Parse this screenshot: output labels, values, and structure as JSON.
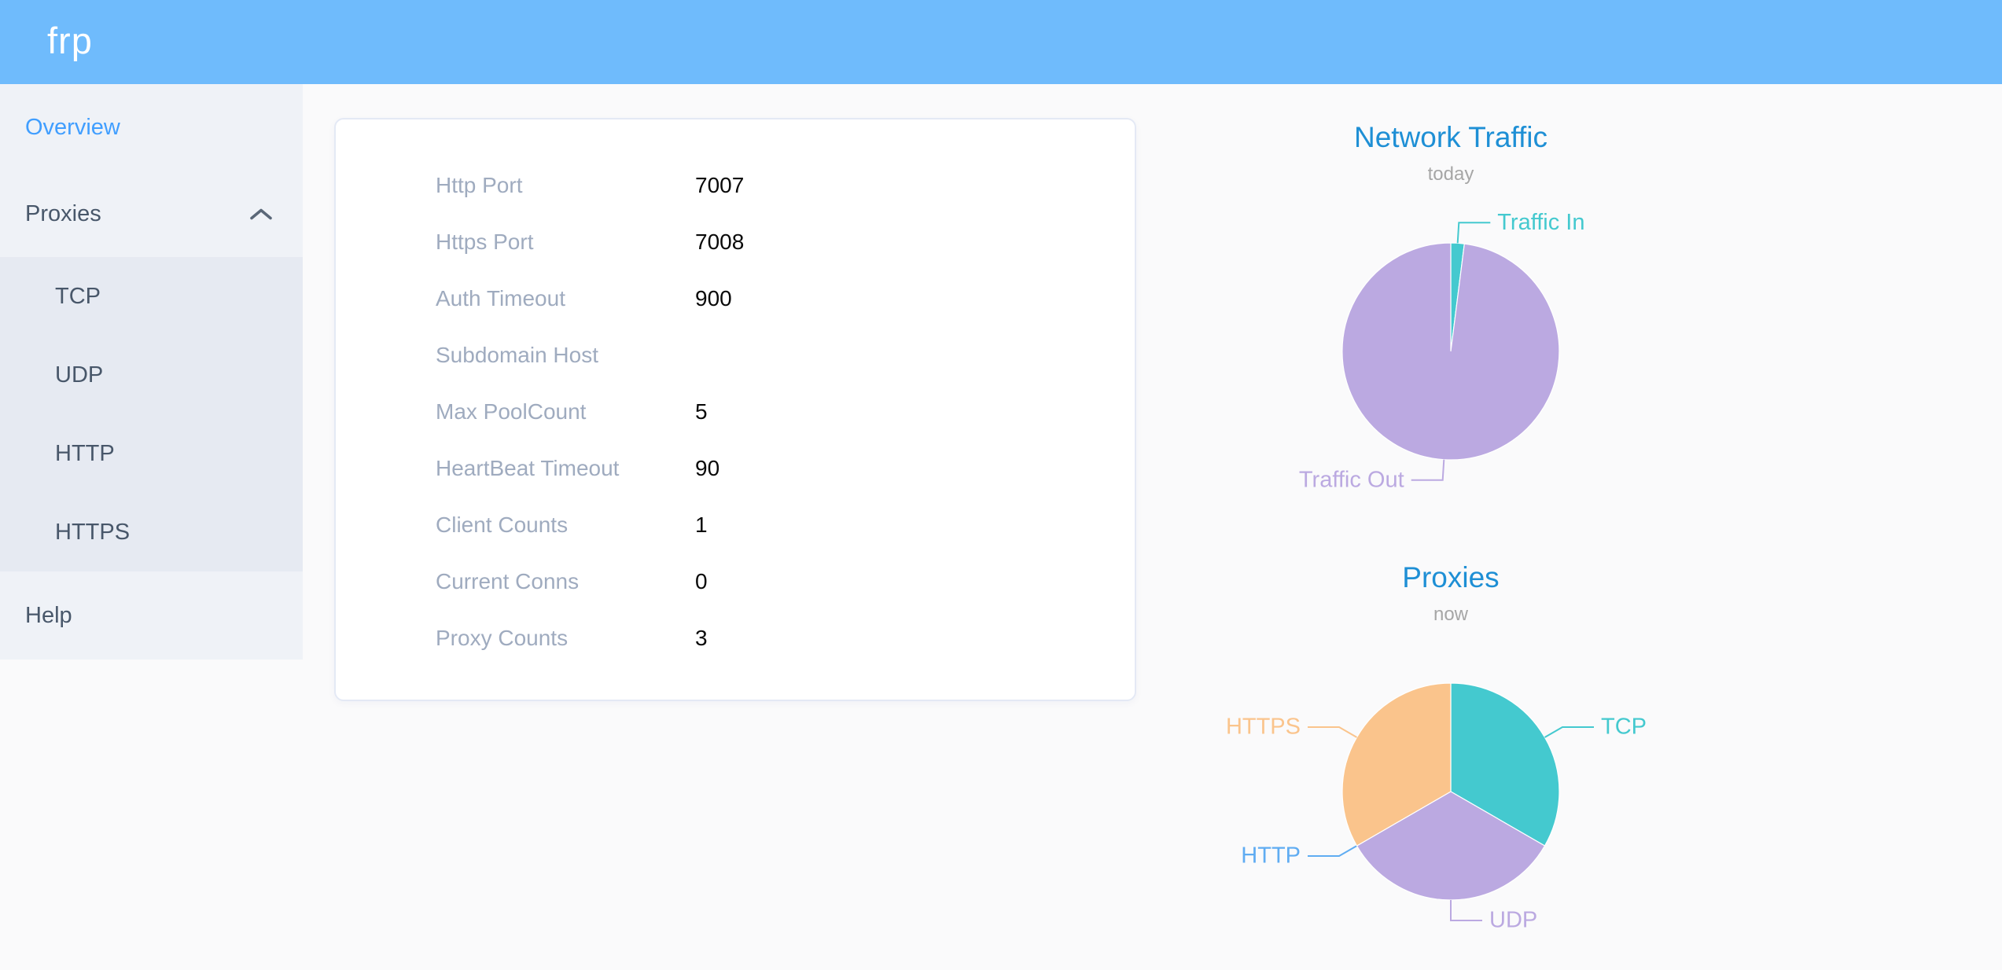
{
  "header": {
    "logo": "frp",
    "bg_color": "#6FBBFC"
  },
  "sidebar": {
    "bg_color": "#EFF2F7",
    "submenu_bg_color": "#E6EAF2",
    "item_color": "#48576A",
    "active_color": "#409EFF",
    "items": [
      {
        "label": "Overview",
        "active": true
      },
      {
        "label": "Proxies",
        "expanded": true,
        "children": [
          {
            "label": "TCP"
          },
          {
            "label": "UDP"
          },
          {
            "label": "HTTP"
          },
          {
            "label": "HTTPS"
          }
        ]
      },
      {
        "label": "Help"
      }
    ]
  },
  "overview": {
    "rows": [
      {
        "label": "Http Port",
        "value": "7007"
      },
      {
        "label": "Https Port",
        "value": "7008"
      },
      {
        "label": "Auth Timeout",
        "value": "900"
      },
      {
        "label": "Subdomain Host",
        "value": ""
      },
      {
        "label": "Max PoolCount",
        "value": "5"
      },
      {
        "label": "HeartBeat Timeout",
        "value": "90"
      },
      {
        "label": "Client Counts",
        "value": "1"
      },
      {
        "label": "Current Conns",
        "value": "0"
      },
      {
        "label": "Proxy Counts",
        "value": "3"
      }
    ]
  },
  "chart_data": [
    {
      "type": "pie",
      "title": "Network Traffic",
      "subtitle": "today",
      "unit": "percent_estimate",
      "legend_position": "outside-labels",
      "title_color": "#1E8FD5",
      "series": [
        {
          "name": "Traffic In",
          "value": 2,
          "color": "#44C9CF"
        },
        {
          "name": "Traffic Out",
          "value": 98,
          "color": "#BBA9E1"
        }
      ]
    },
    {
      "type": "pie",
      "title": "Proxies",
      "subtitle": "now",
      "unit": "count",
      "legend_position": "outside-labels",
      "title_color": "#1E8FD5",
      "series": [
        {
          "name": "TCP",
          "value": 1,
          "color": "#44C9CF"
        },
        {
          "name": "UDP",
          "value": 1,
          "color": "#BBA9E1"
        },
        {
          "name": "HTTP",
          "value": 0,
          "color": "#5FACF2"
        },
        {
          "name": "HTTPS",
          "value": 1,
          "color": "#FAC48C"
        }
      ]
    }
  ]
}
